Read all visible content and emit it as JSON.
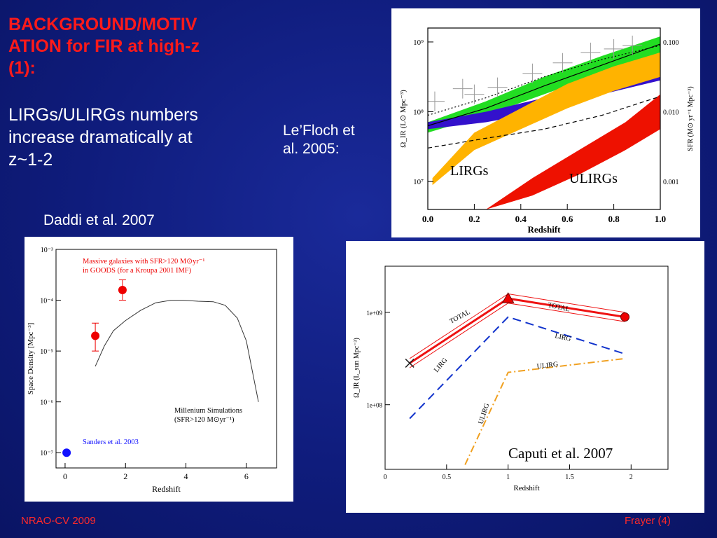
{
  "slide": {
    "title_line1": "BACKGROUND/MOTIV",
    "title_line2": "ATION for FIR at high-z",
    "title_line3": "(1):",
    "subtitle_line1": "LIRGs/ULIRGs numbers",
    "subtitle_line2": "increase dramatically at",
    "subtitle_line3": "z~1-2",
    "lefloch_line1": "Le’Floch et",
    "lefloch_line2": "al. 2005:",
    "daddi_caption": "Daddi et al. 2007",
    "footer_left": "NRAO-CV 2009",
    "footer_right": "Frayer  (4)"
  },
  "chart_data": [
    {
      "id": "lefloch",
      "type": "area",
      "xlabel": "Redshift",
      "ylabel": "Ω_IR (L⊙ Mpc⁻³)",
      "y2label": "SFR (M⊙ yr⁻¹ Mpc⁻³)",
      "xlim": [
        0,
        1
      ],
      "ylim_log": [
        6.6,
        9.2
      ],
      "x_ticks": [
        "0.0",
        "0.2",
        "0.4",
        "0.6",
        "0.8",
        "1.0"
      ],
      "y_ticks": [
        "10⁷",
        "10⁸",
        "10⁹"
      ],
      "y_tick_values": [
        7,
        8,
        9
      ],
      "y2_ticks": [
        "0.001",
        "0.010",
        "0.100"
      ],
      "y2_tick_values": [
        7,
        8,
        9
      ],
      "annotations": [
        "LIRGs",
        "ULIRGs"
      ],
      "bands": [
        {
          "color": "#22dd22",
          "x": [
            0,
            0.25,
            0.5,
            0.75,
            1.0
          ],
          "lo": [
            7.7,
            7.95,
            8.25,
            8.55,
            8.85
          ],
          "hi": [
            7.85,
            8.15,
            8.5,
            8.8,
            9.08
          ]
        },
        {
          "color": "#3311cc",
          "x": [
            0,
            0.25,
            0.5,
            0.75,
            1.0
          ],
          "lo": [
            7.75,
            7.85,
            8.0,
            8.25,
            8.45
          ],
          "hi": [
            7.85,
            8.0,
            8.2,
            8.5,
            8.7
          ]
        },
        {
          "color": "#ffb300",
          "x": [
            0.02,
            0.2,
            0.4,
            0.6,
            0.8,
            1.0
          ],
          "lo": [
            6.95,
            7.45,
            7.75,
            8.05,
            8.3,
            8.5
          ],
          "hi": [
            7.05,
            7.7,
            8.05,
            8.4,
            8.65,
            8.85
          ]
        },
        {
          "color": "#ee1100",
          "x": [
            0.25,
            0.45,
            0.65,
            0.85,
            1.0
          ],
          "lo": [
            6.6,
            6.8,
            7.1,
            7.45,
            7.75
          ],
          "hi": [
            6.6,
            7.05,
            7.45,
            7.85,
            8.25
          ]
        }
      ],
      "lines": [
        {
          "style": "solid",
          "x": [
            0,
            0.25,
            0.5,
            0.75,
            1.0
          ],
          "y": [
            7.8,
            8.05,
            8.37,
            8.67,
            8.97
          ]
        },
        {
          "style": "dotted",
          "x": [
            0,
            0.25,
            0.5,
            0.75,
            1.0
          ],
          "y": [
            7.95,
            8.2,
            8.5,
            8.75,
            8.95
          ]
        },
        {
          "style": "dashed",
          "x": [
            0,
            0.25,
            0.5,
            0.75,
            1.0
          ],
          "y": [
            7.48,
            7.62,
            7.75,
            7.95,
            8.22
          ]
        }
      ],
      "points": [
        {
          "x": 0.03,
          "y": 8.15
        },
        {
          "x": 0.15,
          "y": 8.33
        },
        {
          "x": 0.2,
          "y": 8.25
        },
        {
          "x": 0.3,
          "y": 8.35
        },
        {
          "x": 0.45,
          "y": 8.55
        },
        {
          "x": 0.58,
          "y": 8.7
        },
        {
          "x": 0.7,
          "y": 8.85
        },
        {
          "x": 0.8,
          "y": 8.9
        },
        {
          "x": 0.88,
          "y": 8.95
        }
      ]
    },
    {
      "id": "daddi",
      "type": "scatter",
      "xlabel": "Redshift",
      "ylabel": "Space Density [Mpc⁻³]",
      "xlim": [
        -0.3,
        7
      ],
      "ylim_log": [
        -7.3,
        -3
      ],
      "x_ticks": [
        "0",
        "2",
        "4",
        "6"
      ],
      "x_tick_values": [
        0,
        2,
        4,
        6
      ],
      "y_ticks": [
        "10⁻⁷",
        "10⁻⁶",
        "10⁻⁵",
        "10⁻⁴",
        "10⁻³"
      ],
      "y_tick_values": [
        -7,
        -6,
        -5,
        -4,
        -3
      ],
      "legend_red_line1": "Massive galaxies with SFR>120 M⊙yr⁻¹",
      "legend_red_line2": "in GOODS (for a Kroupa 2001 IMF)",
      "legend_sim_line1": "Millenium Simulations",
      "legend_sim_line2": "(SFR>120 M⊙yr⁻¹)",
      "legend_blue": "Sanders et al. 2003",
      "simulation_curve": {
        "x": [
          1.0,
          1.3,
          1.6,
          2.0,
          2.5,
          3.0,
          3.5,
          3.9,
          4.4,
          4.9,
          5.3,
          5.7,
          6.0,
          6.4
        ],
        "y": [
          -5.3,
          -4.9,
          -4.6,
          -4.4,
          -4.2,
          -4.05,
          -4.0,
          -4.0,
          -4.02,
          -4.03,
          -4.1,
          -4.35,
          -4.8,
          -6.0
        ]
      },
      "points_red": [
        {
          "x": 1.0,
          "y": -4.7,
          "err_lo": -5.0,
          "err_hi": -4.45
        },
        {
          "x": 1.9,
          "y": -3.8,
          "err_lo": -4.0,
          "err_hi": -3.6
        }
      ],
      "points_blue": [
        {
          "x": 0.05,
          "y": -7.0
        }
      ]
    },
    {
      "id": "caputi",
      "type": "line",
      "xlabel": "Redshift",
      "ylabel": "Ω_IR (L_sun Mpc⁻³)",
      "caption": "Caputi et al. 2007",
      "xlim": [
        0,
        2.3
      ],
      "ylim_log": [
        7.3,
        9.5
      ],
      "x_ticks": [
        "0",
        "0.5",
        "1",
        "1.5",
        "2"
      ],
      "x_tick_values": [
        0,
        0.5,
        1,
        1.5,
        2
      ],
      "y_ticks": [
        "1e+08",
        "1e+09"
      ],
      "y_tick_values": [
        8,
        9
      ],
      "series": [
        {
          "name": "TOTAL",
          "color": "#ee1111",
          "style": "solid",
          "x": [
            0.2,
            1.0,
            1.95
          ],
          "y": [
            8.45,
            9.15,
            8.95
          ]
        },
        {
          "name": "LIRG",
          "color": "#1133cc",
          "style": "dashed",
          "x": [
            0.2,
            1.0,
            1.95
          ],
          "y": [
            7.85,
            8.95,
            8.55
          ]
        },
        {
          "name": "ULIRG",
          "color": "#f0a020",
          "style": "dashdot",
          "x": [
            0.65,
            1.0,
            1.95
          ],
          "y": [
            7.35,
            8.35,
            8.5
          ]
        }
      ],
      "series_labels": [
        "TOTAL",
        "TOTAL",
        "LIRG",
        "LIRG",
        "ULIRG",
        "ULIRG"
      ],
      "markers": [
        {
          "shape": "triangle",
          "x": 1.0,
          "y": 9.15
        },
        {
          "shape": "circle",
          "x": 1.95,
          "y": 8.95
        },
        {
          "shape": "cross",
          "x": 0.2,
          "y": 8.45
        }
      ]
    }
  ]
}
